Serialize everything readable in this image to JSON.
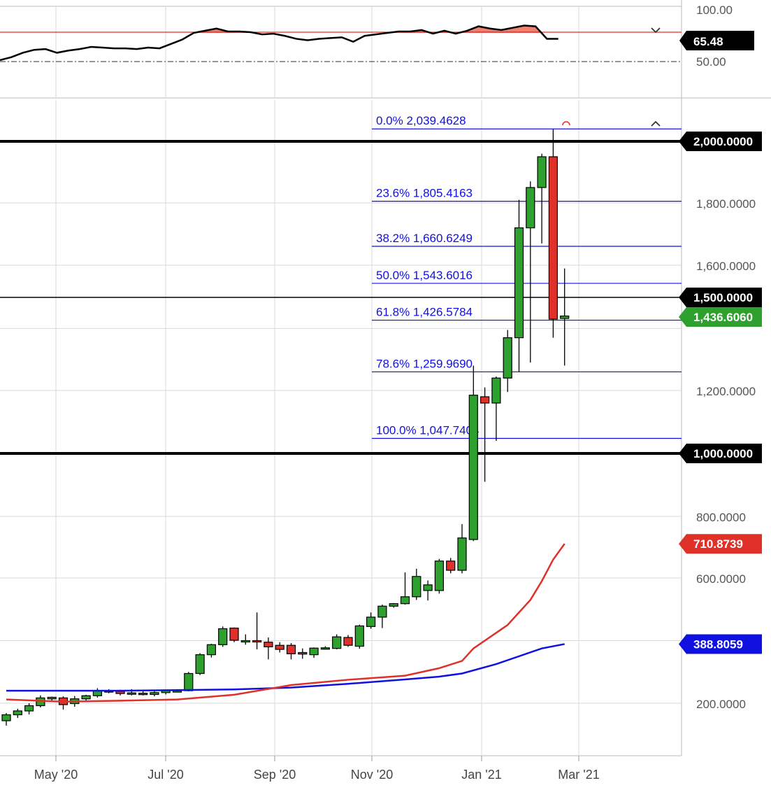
{
  "chart_data": {
    "type": "candlestick",
    "x_ticks": [
      "May '20",
      "Jul '20",
      "Sep '20",
      "Nov '20",
      "Jan '21",
      "Mar '21"
    ],
    "y_ticks": [
      "200.0000",
      "600.0000",
      "800.0000",
      "1,200.0000",
      "1,600.0000",
      "1,800.0000"
    ],
    "horizontal_levels": [
      {
        "value": 2000,
        "label": "2,000.0000",
        "weight": "heavy"
      },
      {
        "value": 1000,
        "label": "1,000.0000",
        "weight": "heavy"
      },
      {
        "value": 1500,
        "label": "1,500.0000",
        "weight": "thin"
      }
    ],
    "price_badges": [
      {
        "value": 1436.606,
        "label": "1,436.6060",
        "color": "#2da02d"
      },
      {
        "value": 710.8739,
        "label": "710.8739",
        "color": "#e0302a"
      },
      {
        "value": 388.8059,
        "label": "388.8059",
        "color": "#1010e0"
      }
    ],
    "fib_levels": [
      {
        "label": "0.0% 2,039.4628",
        "value": 2039.4628
      },
      {
        "label": "23.6% 1,805.4163",
        "value": 1805.4163
      },
      {
        "label": "38.2% 1,660.6249",
        "value": 1660.6249
      },
      {
        "label": "50.0% 1,543.6016",
        "value": 1543.6016
      },
      {
        "label": "61.8% 1,426.5784",
        "value": 1426.5784
      },
      {
        "label": "78.6% 1,259.9690",
        "value": 1259.969
      },
      {
        "label": "100.0% 1,047.7404",
        "value": 1047.7404
      }
    ],
    "candles": [
      {
        "o": 150,
        "h": 172,
        "l": 136,
        "c": 167
      },
      {
        "o": 167,
        "h": 184,
        "l": 158,
        "c": 178
      },
      {
        "o": 178,
        "h": 200,
        "l": 168,
        "c": 193
      },
      {
        "o": 193,
        "h": 225,
        "l": 188,
        "c": 217
      },
      {
        "o": 214,
        "h": 221,
        "l": 205,
        "c": 219
      },
      {
        "o": 217,
        "h": 222,
        "l": 182,
        "c": 196
      },
      {
        "o": 199,
        "h": 223,
        "l": 190,
        "c": 214
      },
      {
        "o": 214,
        "h": 227,
        "l": 208,
        "c": 224
      },
      {
        "o": 224,
        "h": 248,
        "l": 218,
        "c": 241
      },
      {
        "o": 238,
        "h": 245,
        "l": 232,
        "c": 240
      },
      {
        "o": 238,
        "h": 243,
        "l": 225,
        "c": 231
      },
      {
        "o": 232,
        "h": 245,
        "l": 225,
        "c": 233
      },
      {
        "o": 232,
        "h": 238,
        "l": 225,
        "c": 228
      },
      {
        "o": 228,
        "h": 240,
        "l": 222,
        "c": 234
      },
      {
        "o": 234,
        "h": 244,
        "l": 228,
        "c": 240
      },
      {
        "o": 240,
        "h": 245,
        "l": 237,
        "c": 240
      },
      {
        "o": 240,
        "h": 300,
        "l": 238,
        "c": 295
      },
      {
        "o": 295,
        "h": 360,
        "l": 290,
        "c": 355
      },
      {
        "o": 355,
        "h": 390,
        "l": 346,
        "c": 387
      },
      {
        "o": 387,
        "h": 445,
        "l": 380,
        "c": 438
      },
      {
        "o": 440,
        "h": 442,
        "l": 395,
        "c": 401
      },
      {
        "o": 400,
        "h": 420,
        "l": 387,
        "c": 400
      },
      {
        "o": 400,
        "h": 490,
        "l": 372,
        "c": 397
      },
      {
        "o": 395,
        "h": 410,
        "l": 340,
        "c": 380
      },
      {
        "o": 385,
        "h": 395,
        "l": 362,
        "c": 372
      },
      {
        "o": 385,
        "h": 392,
        "l": 340,
        "c": 358
      },
      {
        "o": 362,
        "h": 375,
        "l": 342,
        "c": 357
      },
      {
        "o": 355,
        "h": 378,
        "l": 345,
        "c": 376
      },
      {
        "o": 375,
        "h": 382,
        "l": 372,
        "c": 377
      },
      {
        "o": 375,
        "h": 420,
        "l": 372,
        "c": 412
      },
      {
        "o": 410,
        "h": 418,
        "l": 380,
        "c": 385
      },
      {
        "o": 382,
        "h": 451,
        "l": 374,
        "c": 447
      },
      {
        "o": 445,
        "h": 490,
        "l": 438,
        "c": 475
      },
      {
        "o": 475,
        "h": 515,
        "l": 440,
        "c": 510
      },
      {
        "o": 510,
        "h": 520,
        "l": 505,
        "c": 518
      },
      {
        "o": 518,
        "h": 618,
        "l": 515,
        "c": 540
      },
      {
        "o": 540,
        "h": 630,
        "l": 530,
        "c": 605
      },
      {
        "o": 560,
        "h": 592,
        "l": 528,
        "c": 578
      },
      {
        "o": 560,
        "h": 662,
        "l": 550,
        "c": 655
      },
      {
        "o": 655,
        "h": 665,
        "l": 615,
        "c": 625
      },
      {
        "o": 625,
        "h": 775,
        "l": 615,
        "c": 730
      },
      {
        "o": 725,
        "h": 1280,
        "l": 720,
        "c": 1185
      },
      {
        "o": 1180,
        "h": 1210,
        "l": 910,
        "c": 1160
      },
      {
        "o": 1160,
        "h": 1245,
        "l": 1040,
        "c": 1240
      },
      {
        "o": 1240,
        "h": 1395,
        "l": 1195,
        "c": 1370
      },
      {
        "o": 1370,
        "h": 1810,
        "l": 1260,
        "c": 1720
      },
      {
        "o": 1720,
        "h": 1870,
        "l": 1290,
        "c": 1850
      },
      {
        "o": 1850,
        "h": 1960,
        "l": 1670,
        "c": 1950
      },
      {
        "o": 1950,
        "h": 2039,
        "l": 1370,
        "c": 1430
      },
      {
        "o": 1432,
        "h": 1590,
        "l": 1280,
        "c": 1440
      }
    ],
    "ma_fast": [
      [
        0,
        212
      ],
      [
        5,
        205
      ],
      [
        10,
        208
      ],
      [
        15,
        212
      ],
      [
        20,
        227
      ],
      [
        25,
        258
      ],
      [
        30,
        275
      ],
      [
        35,
        288
      ],
      [
        38,
        312
      ],
      [
        40,
        335
      ],
      [
        41,
        375
      ],
      [
        44,
        450
      ],
      [
        46,
        530
      ],
      [
        47,
        590
      ],
      [
        48,
        660
      ],
      [
        49,
        711
      ]
    ],
    "ma_slow": [
      [
        0,
        240
      ],
      [
        10,
        240
      ],
      [
        15,
        242
      ],
      [
        20,
        244
      ],
      [
        25,
        250
      ],
      [
        30,
        262
      ],
      [
        35,
        276
      ],
      [
        38,
        285
      ],
      [
        40,
        295
      ],
      [
        43,
        325
      ],
      [
        45,
        350
      ],
      [
        47,
        375
      ],
      [
        49,
        389
      ]
    ],
    "rsi": {
      "range": [
        50,
        100
      ],
      "upper_label": "100.00",
      "mid_label": "50.00",
      "value_label": "65.48",
      "overbought": 70,
      "values": [
        51,
        53,
        56,
        58,
        58.5,
        56,
        57.5,
        58.5,
        60,
        59.5,
        59,
        59,
        58.5,
        59.5,
        59,
        62,
        65,
        69.5,
        71,
        72.5,
        70.5,
        70.5,
        70,
        68.5,
        69,
        67.5,
        65.5,
        64.5,
        65.5,
        66,
        66.5,
        63.5,
        67.5,
        68.5,
        69.5,
        70.5,
        70.5,
        71.5,
        69,
        71,
        69,
        71,
        74,
        72.5,
        71.5,
        73,
        74.5,
        74,
        65.5,
        65.5
      ]
    }
  }
}
